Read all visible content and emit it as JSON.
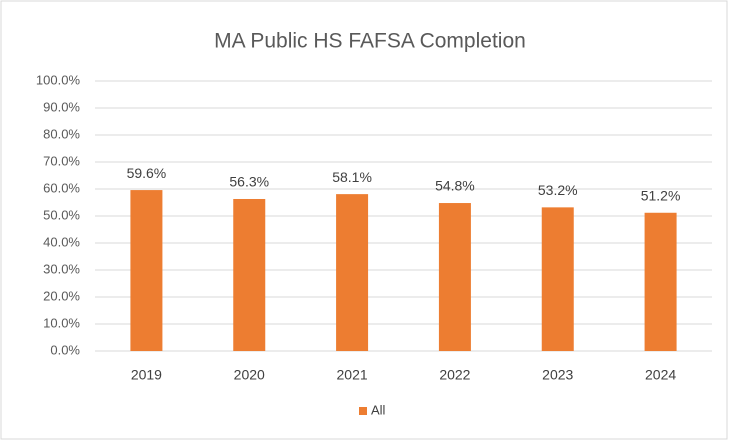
{
  "chart_data": {
    "type": "bar",
    "title": "MA Public HS FAFSA Completion",
    "categories": [
      "2019",
      "2020",
      "2021",
      "2022",
      "2023",
      "2024"
    ],
    "series": [
      {
        "name": "All",
        "color": "#ed7d31",
        "values": [
          59.6,
          56.3,
          58.1,
          54.8,
          53.2,
          51.2
        ],
        "value_labels": [
          "59.6%",
          "56.3%",
          "58.1%",
          "54.8%",
          "53.2%",
          "51.2%"
        ]
      }
    ],
    "ylim": [
      0,
      100
    ],
    "yticks": [
      {
        "value": 0,
        "label": "0.0%"
      },
      {
        "value": 10,
        "label": "10.0%"
      },
      {
        "value": 20,
        "label": "20.0%"
      },
      {
        "value": 30,
        "label": "30.0%"
      },
      {
        "value": 40,
        "label": "40.0%"
      },
      {
        "value": 50,
        "label": "50.0%"
      },
      {
        "value": 60,
        "label": "60.0%"
      },
      {
        "value": 70,
        "label": "70.0%"
      },
      {
        "value": 80,
        "label": "80.0%"
      },
      {
        "value": 90,
        "label": "90.0%"
      },
      {
        "value": 100,
        "label": "100.0%"
      }
    ],
    "grid": true,
    "legend": "bottom"
  }
}
